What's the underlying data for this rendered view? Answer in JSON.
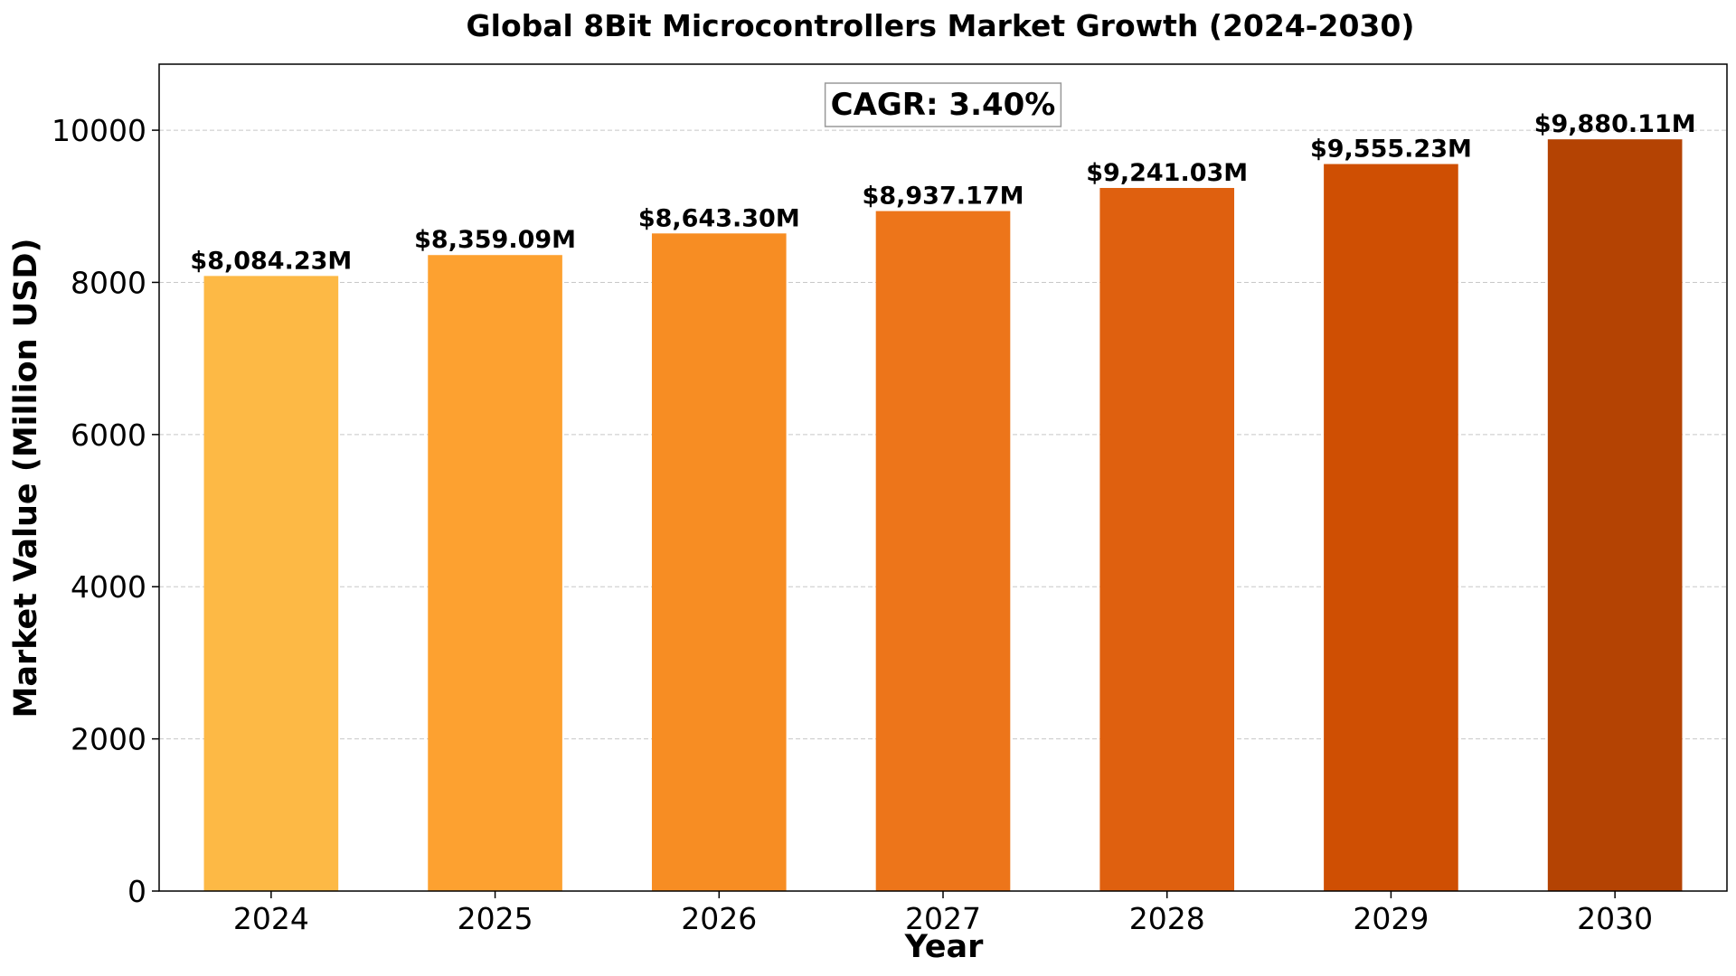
{
  "chart_data": {
    "type": "bar",
    "title": "Global 8Bit Microcontrollers Market Growth (2024-2030)",
    "xlabel": "Year",
    "ylabel": "Market Value (Million USD)",
    "categories": [
      "2024",
      "2025",
      "2026",
      "2027",
      "2028",
      "2029",
      "2030"
    ],
    "values": [
      8084.23,
      8359.09,
      8643.3,
      8937.17,
      9241.03,
      9555.23,
      9880.11
    ],
    "data_labels": [
      "$8,084.23M",
      "$8,359.09M",
      "$8,643.30M",
      "$8,937.17M",
      "$9,241.03M",
      "$9,555.23M",
      "$9,880.11M"
    ],
    "bar_colors": [
      "#fdb945",
      "#fda130",
      "#f78d23",
      "#ed751a",
      "#df600f",
      "#cf4f03",
      "#b44303"
    ],
    "ylim": [
      0,
      10868
    ],
    "yticks": [
      0,
      2000,
      4000,
      6000,
      8000,
      10000
    ],
    "ytick_labels": [
      "0",
      "2000",
      "4000",
      "6000",
      "8000",
      "10000"
    ],
    "grid": "y-dashed",
    "annotation": "CAGR: 3.40%"
  }
}
